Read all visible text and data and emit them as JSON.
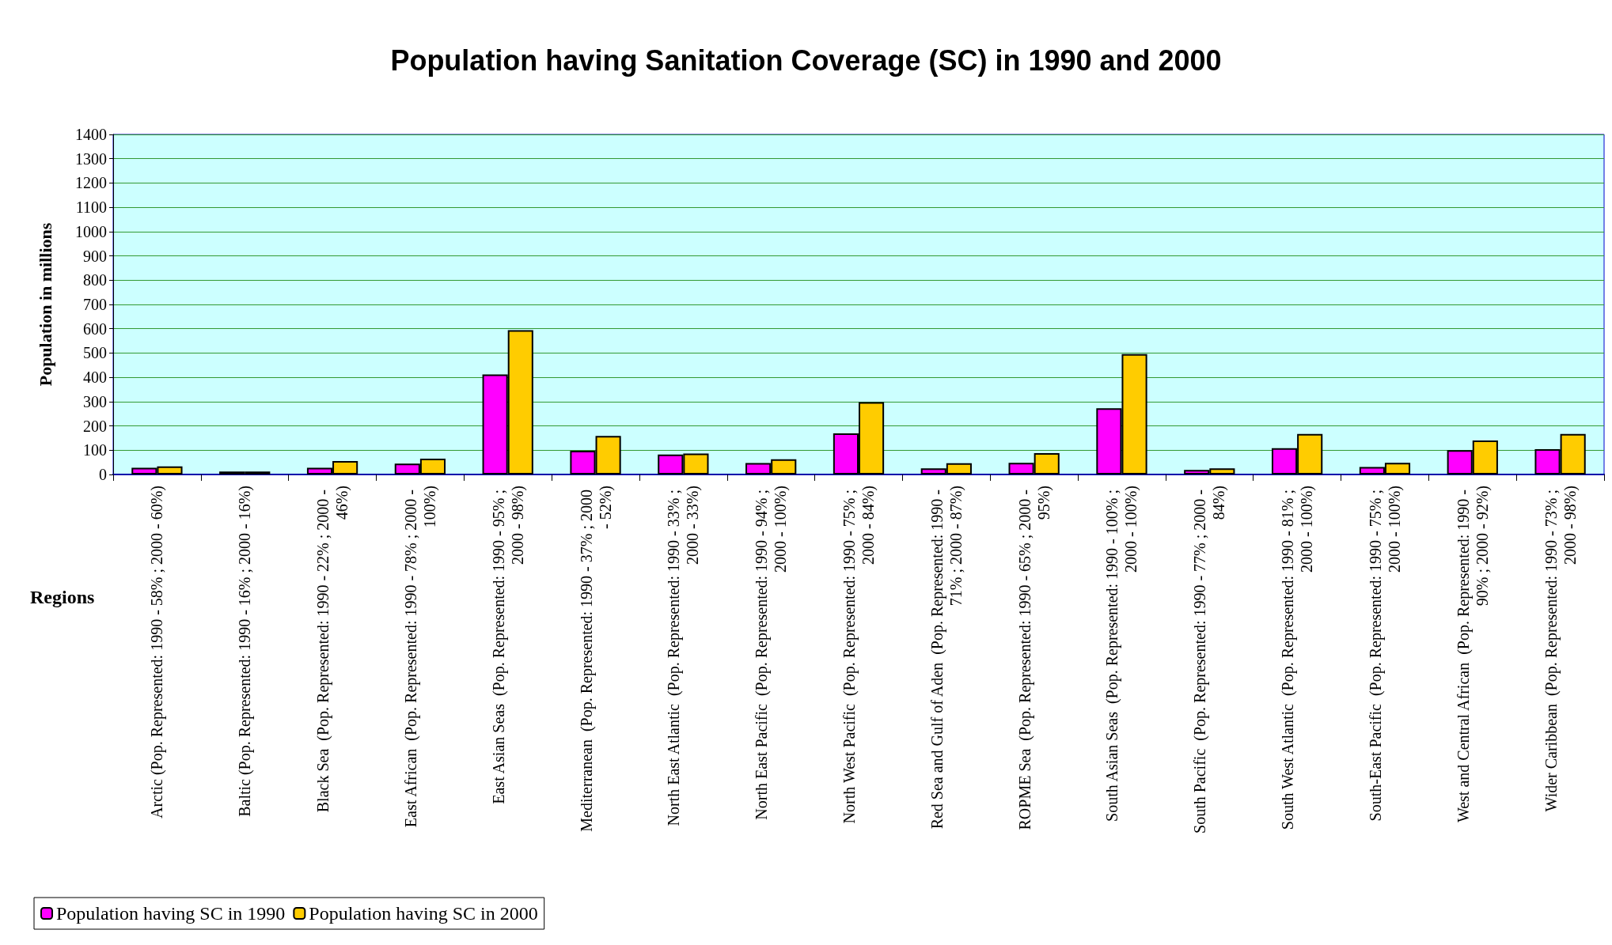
{
  "chart_data": {
    "type": "bar",
    "title": "Population having Sanitation Coverage (SC) in 1990 and 2000",
    "xlabel": "Regions",
    "ylabel": "Population in millions",
    "categories": [
      "Arctic (Pop. Represented: 1990 - 58% ; 2000 - 60%)",
      "Baltic (Pop. Represented: 1990 - 16% ; 2000 - 16%)",
      "Black Sea  (Pop. Represented: 1990 - 22% ; 2000 - 46%)",
      "East African  (Pop. Represented: 1990 - 78% ; 2000 - 100%)",
      "East Asian Seas  (Pop. Represented: 1990 - 95% ; 2000 - 98%)",
      "Mediterranean  (Pop. Represented: 1990 - 37% ; 2000 - 52%)",
      "North East Atlantic  (Pop. Represented: 1990 - 33% ; 2000 - 33%)",
      "North East Pacific  (Pop. Represented: 1990 - 94% ; 2000 - 100%)",
      "North West Pacific  (Pop. Represented: 1990 - 75% ; 2000 - 84%)",
      "Red Sea and Gulf of Aden  (Pop. Represented: 1990 - 71% ; 2000 - 87%)",
      "ROPME Sea  (Pop. Represented: 1990 - 65% ; 2000 - 95%)",
      "South Asian Seas  (Pop. Represented: 1990 - 100% ; 2000 - 100%)",
      "South Pacific  (Pop. Represented: 1990 - 77% ; 2000 - 84%)",
      "South West Atlantic  (Pop. Represented: 1990 - 81% ; 2000 - 100%)",
      "South-East Pacific  (Pop. Represented: 1990 - 75% ; 2000 - 100%)",
      "West and Central African  (Pop. Represented: 1990 - 90% ; 2000 - 92%)",
      "Wider Caribbean  (Pop. Represented: 1990 - 73% ; 2000 - 98%)"
    ],
    "series": [
      {
        "name": "Population having SC in 1990",
        "color": "#ff00ff",
        "values": [
          28,
          12,
          28,
          45,
          412,
          98,
          82,
          47,
          169,
          25,
          48,
          273,
          19,
          108,
          31,
          100,
          104
        ]
      },
      {
        "name": "Population having SC in 2000",
        "color": "#ffcc00",
        "values": [
          33,
          12,
          55,
          65,
          594,
          159,
          86,
          63,
          298,
          46,
          88,
          496,
          25,
          167,
          48,
          140,
          167
        ]
      }
    ],
    "ylim": [
      0,
      1400
    ],
    "yticks": [
      0,
      100,
      200,
      300,
      400,
      500,
      600,
      700,
      800,
      900,
      1000,
      1100,
      1200,
      1300,
      1400
    ],
    "grid": "y",
    "legend": "bottom left"
  }
}
